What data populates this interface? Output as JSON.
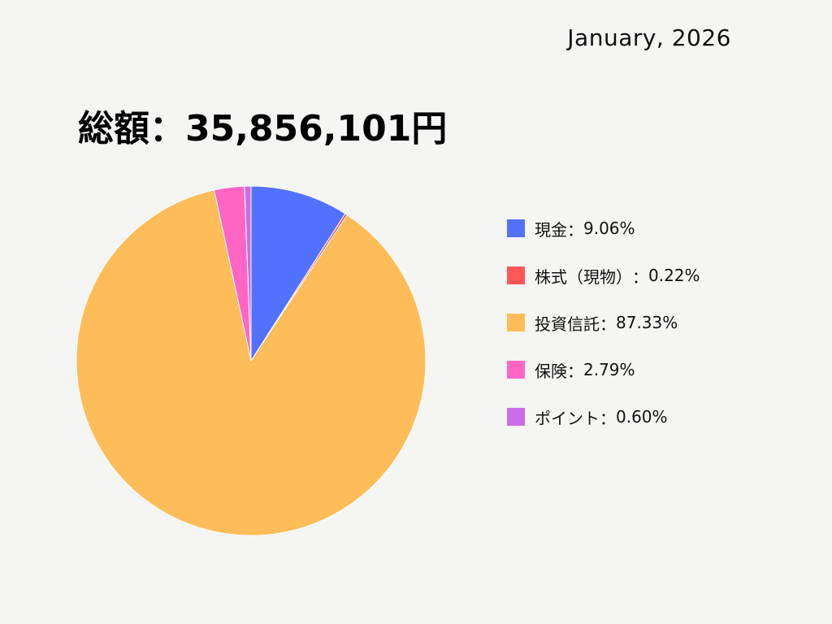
{
  "header": {
    "date": "January, 2026",
    "total_label": "総額",
    "total_sep": "：",
    "total_value": "35,856,101円"
  },
  "chart_data": {
    "type": "pie",
    "title": "総額：35,856,101円",
    "categories": [
      "現金",
      "株式（現物）",
      "投資信託",
      "保険",
      "ポイント"
    ],
    "values": [
      9.06,
      0.22,
      87.33,
      2.79,
      0.6
    ],
    "value_labels": [
      "9.06%",
      "0.22%",
      "87.33%",
      "2.79%",
      "0.60%"
    ],
    "colors": [
      "#5271ff",
      "#ff5757",
      "#ffbd59",
      "#ff66c4",
      "#cb6ce6"
    ],
    "legend_position": "right",
    "separator": "："
  }
}
